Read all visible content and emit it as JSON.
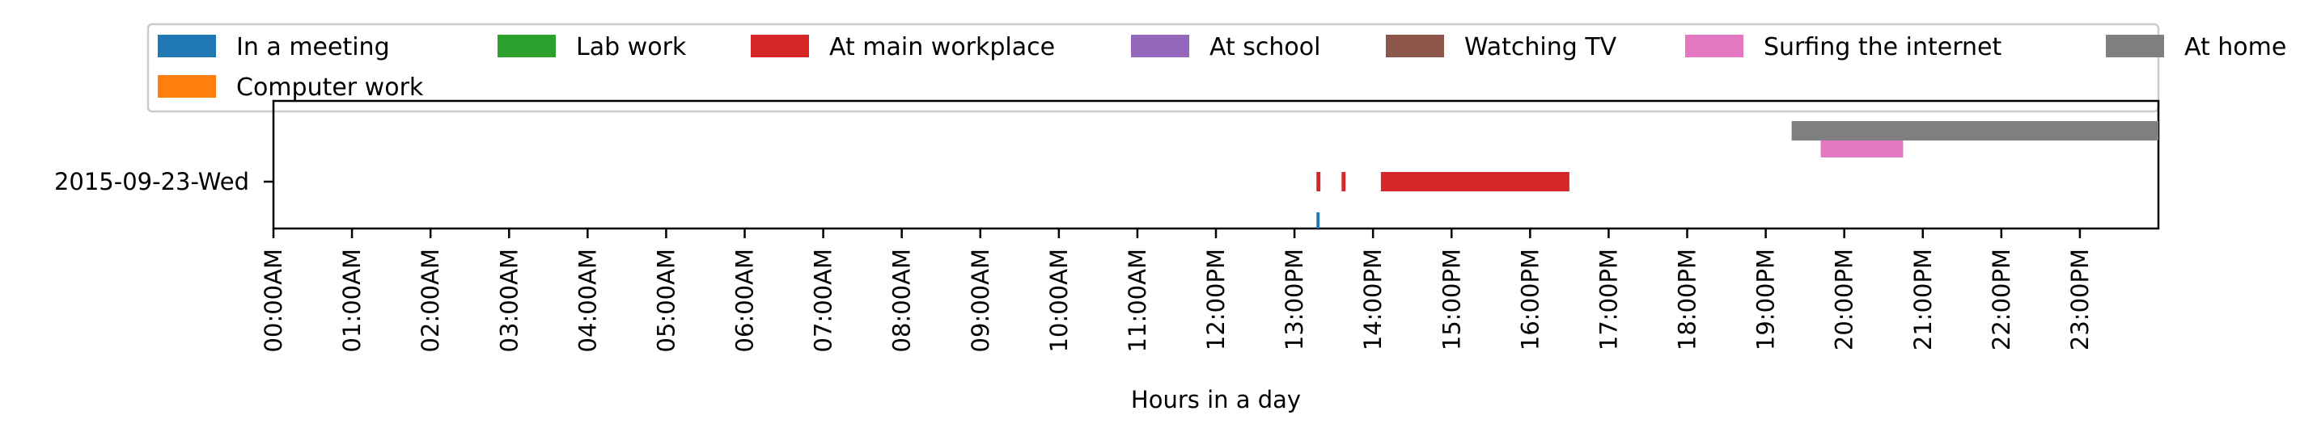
{
  "chart_data": {
    "type": "bar",
    "orientation": "horizontal-timeline",
    "xlabel": "Hours in a day",
    "ylabel": "",
    "xlim": [
      0,
      24
    ],
    "x_ticks": [
      "00:00AM",
      "01:00AM",
      "02:00AM",
      "03:00AM",
      "04:00AM",
      "05:00AM",
      "06:00AM",
      "07:00AM",
      "08:00AM",
      "09:00AM",
      "10:00AM",
      "11:00AM",
      "12:00PM",
      "13:00PM",
      "14:00PM",
      "15:00PM",
      "16:00PM",
      "17:00PM",
      "18:00PM",
      "19:00PM",
      "20:00PM",
      "21:00PM",
      "22:00PM",
      "23:00PM"
    ],
    "y_categories": [
      "2015-09-23-Wed"
    ],
    "grid": false,
    "legend_position": "top",
    "series": [
      {
        "name": "In a meeting",
        "color": "#1f77b4",
        "level": 0,
        "intervals": [
          [
            13.28,
            13.32
          ]
        ]
      },
      {
        "name": "Computer work",
        "color": "#ff7f0e",
        "level": 1,
        "intervals": []
      },
      {
        "name": "Lab work",
        "color": "#2ca02c",
        "level": 2,
        "intervals": []
      },
      {
        "name": "At main workplace",
        "color": "#d62728",
        "level": 3,
        "intervals": [
          [
            13.28,
            13.33
          ],
          [
            13.6,
            13.65
          ],
          [
            14.1,
            16.5
          ]
        ]
      },
      {
        "name": "At school",
        "color": "#9467bd",
        "level": 4,
        "intervals": []
      },
      {
        "name": "Watching TV",
        "color": "#8c564b",
        "level": 5,
        "intervals": []
      },
      {
        "name": "Surfing the internet",
        "color": "#e377c2",
        "level": 6,
        "intervals": [
          [
            19.7,
            20.75
          ]
        ]
      },
      {
        "name": "At home",
        "color": "#7f7f7f",
        "level": 7,
        "intervals": [
          [
            19.33,
            24.0
          ]
        ]
      }
    ]
  }
}
